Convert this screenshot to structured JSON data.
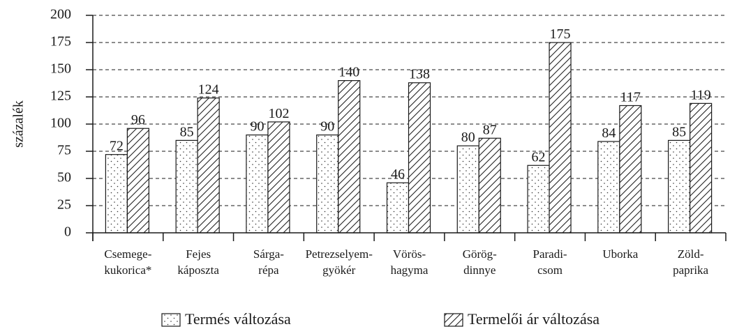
{
  "chart_data": {
    "type": "bar",
    "ylabel": "százalék",
    "categories": [
      [
        "Csemege-",
        "kukorica*"
      ],
      [
        "Fejes",
        "káposzta"
      ],
      [
        "Sárga-",
        "répa"
      ],
      [
        "Petrezselyem-",
        "gyökér"
      ],
      [
        "Vörös-",
        "hagyma"
      ],
      [
        "Görög-",
        "dinnye"
      ],
      [
        "Paradi-",
        "csom"
      ],
      [
        "Uborka"
      ],
      [
        "Zöld-",
        "paprika"
      ]
    ],
    "series": [
      {
        "name": "Termés változása",
        "pattern": "dots",
        "color": "#1a1a1a",
        "values": [
          72,
          85,
          90,
          90,
          46,
          80,
          62,
          84,
          85
        ]
      },
      {
        "name": "Termelői ár változása",
        "pattern": "hatch",
        "color": "#1a1a1a",
        "values": [
          96,
          124,
          102,
          140,
          138,
          87,
          175,
          117,
          119
        ]
      }
    ],
    "ylim": [
      0,
      200
    ],
    "yticks": [
      0,
      25,
      50,
      75,
      100,
      125,
      150,
      175,
      200
    ],
    "grid": true,
    "legend": "bottom"
  }
}
